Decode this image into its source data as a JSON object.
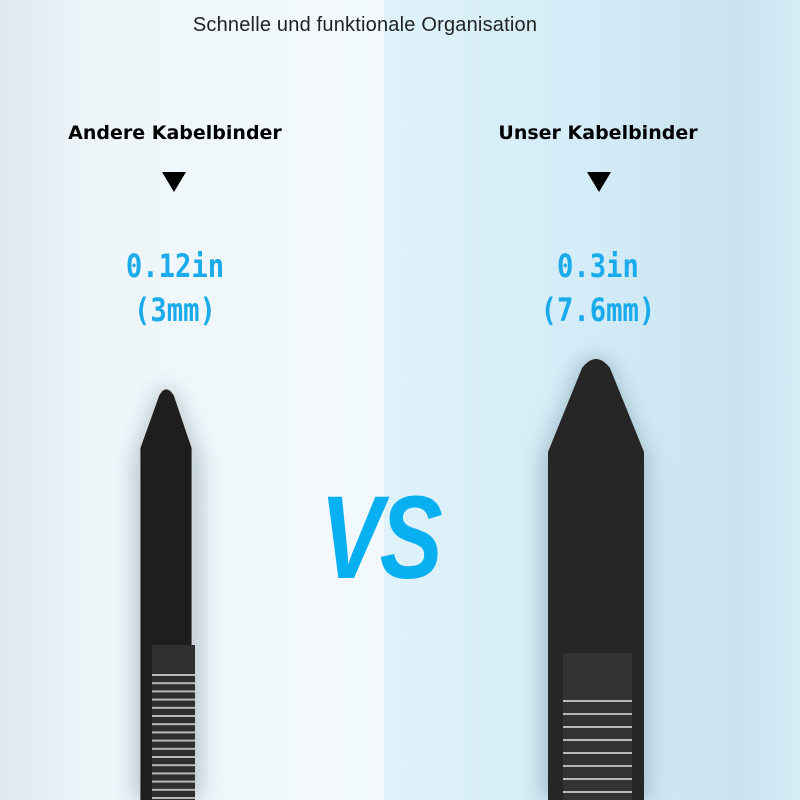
{
  "title": "Schnelle und funktionale Organisation",
  "left": {
    "label": "Andere Kabelbinder",
    "size_in": "0.12in",
    "size_mm": "(3mm)"
  },
  "right": {
    "label": "Unser Kabelbinder",
    "size_in": "0.3in",
    "size_mm": "(7.6mm)"
  },
  "vs": "VS",
  "colors": {
    "accent": "#1aabec",
    "tie": "#1e1e1e"
  }
}
